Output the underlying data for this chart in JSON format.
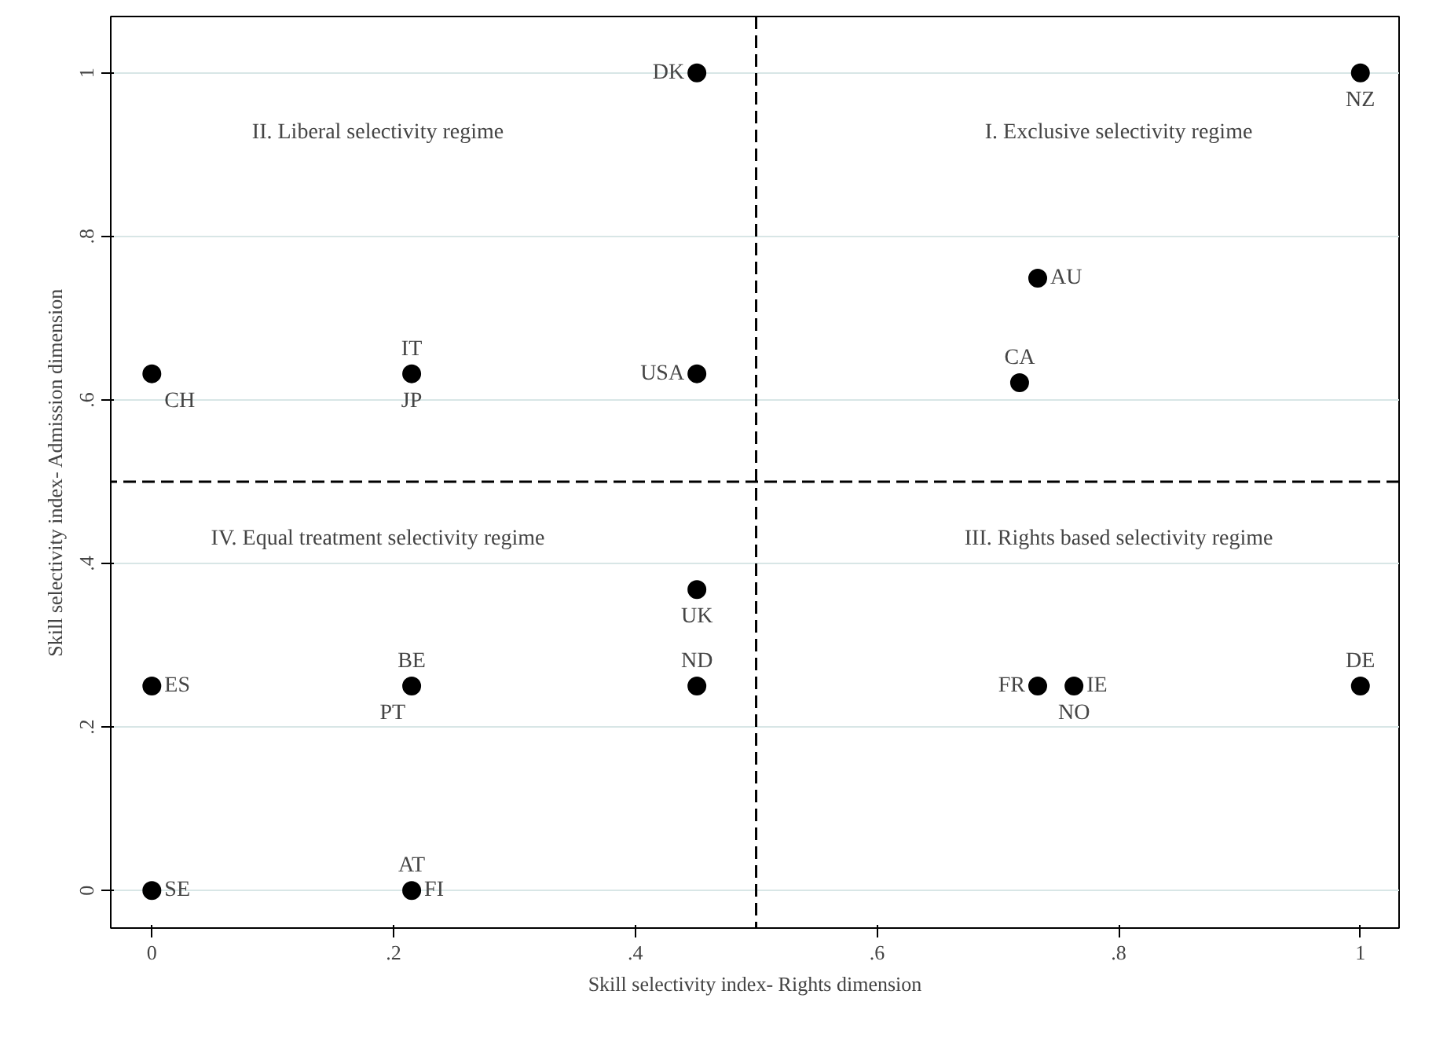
{
  "chart_data": {
    "type": "scatter",
    "xlabel": "Skill selectivity index- Rights dimension",
    "ylabel": "Skill selectivity index- Admission dimension",
    "x": [
      0.451,
      1,
      0,
      0.215,
      0.451,
      0.733,
      0.718,
      0.451,
      0.451,
      0,
      0.215,
      0.733,
      0.763,
      1,
      0,
      0.215
    ],
    "series": [
      {
        "color": "#000000",
        "values": [
          1,
          1,
          0.632,
          0.632,
          0.632,
          0.749,
          0.621,
          0.368,
          0.25,
          0.25,
          0.25,
          0.25,
          0.25,
          0.25,
          0,
          0
        ]
      }
    ],
    "marker": "circle",
    "xlim": [
      -0.034,
      1.032
    ],
    "ylim": [
      -0.046,
      1.069
    ],
    "xticks": [
      0,
      {
        "value": 0.2,
        "label": ".2"
      },
      {
        "value": 0.4,
        "label": ".4"
      },
      {
        "value": 0.6,
        "label": ".6"
      },
      {
        "value": 0.8,
        "label": ".8"
      },
      1
    ],
    "yticks": [
      0,
      {
        "value": 0.2,
        "label": ".2"
      },
      {
        "value": 0.4,
        "label": ".4"
      },
      {
        "value": 0.6,
        "label": ".6"
      },
      {
        "value": 0.8,
        "label": ".8"
      },
      1
    ],
    "grid": "y",
    "ref_lines": [
      {
        "axis": "x",
        "value": 0.5,
        "color": "#000000",
        "line_style": "dashed"
      },
      {
        "axis": "y",
        "value": 0.5,
        "color": "#000000",
        "line_style": "dashed"
      }
    ],
    "annotations": [
      {
        "text": "DK",
        "x": 0.451,
        "y": 1
      },
      {
        "text": "NZ",
        "x": 1,
        "y": 1
      },
      {
        "text": "CH",
        "x": 0,
        "y": 0.632
      },
      {
        "text": "IT",
        "x": 0.215,
        "y": 0.632
      },
      {
        "text": "JP",
        "x": 0.215,
        "y": 0.632
      },
      {
        "text": "USA",
        "x": 0.451,
        "y": 0.632
      },
      {
        "text": "AU",
        "x": 0.733,
        "y": 0.749
      },
      {
        "text": "CA",
        "x": 0.718,
        "y": 0.621
      },
      {
        "text": "UK",
        "x": 0.451,
        "y": 0.368
      },
      {
        "text": "ND",
        "x": 0.451,
        "y": 0.25
      },
      {
        "text": "ES",
        "x": 0,
        "y": 0.25
      },
      {
        "text": "BE",
        "x": 0.215,
        "y": 0.25
      },
      {
        "text": "PT",
        "x": 0.215,
        "y": 0.25
      },
      {
        "text": "FR",
        "x": 0.733,
        "y": 0.25
      },
      {
        "text": "IE",
        "x": 0.763,
        "y": 0.25
      },
      {
        "text": "NO",
        "x": 0.763,
        "y": 0.25
      },
      {
        "text": "DE",
        "x": 1,
        "y": 0.25
      },
      {
        "text": "SE",
        "x": 0,
        "y": 0
      },
      {
        "text": "AT",
        "x": 0.215,
        "y": 0
      },
      {
        "text": "FI",
        "x": 0.215,
        "y": 0
      },
      "I. Exclusive selectivity regime",
      "II. Liberal selectivity regime",
      "III. Rights based selectivity regime",
      "IV. Equal treatment selectivity regime"
    ]
  }
}
